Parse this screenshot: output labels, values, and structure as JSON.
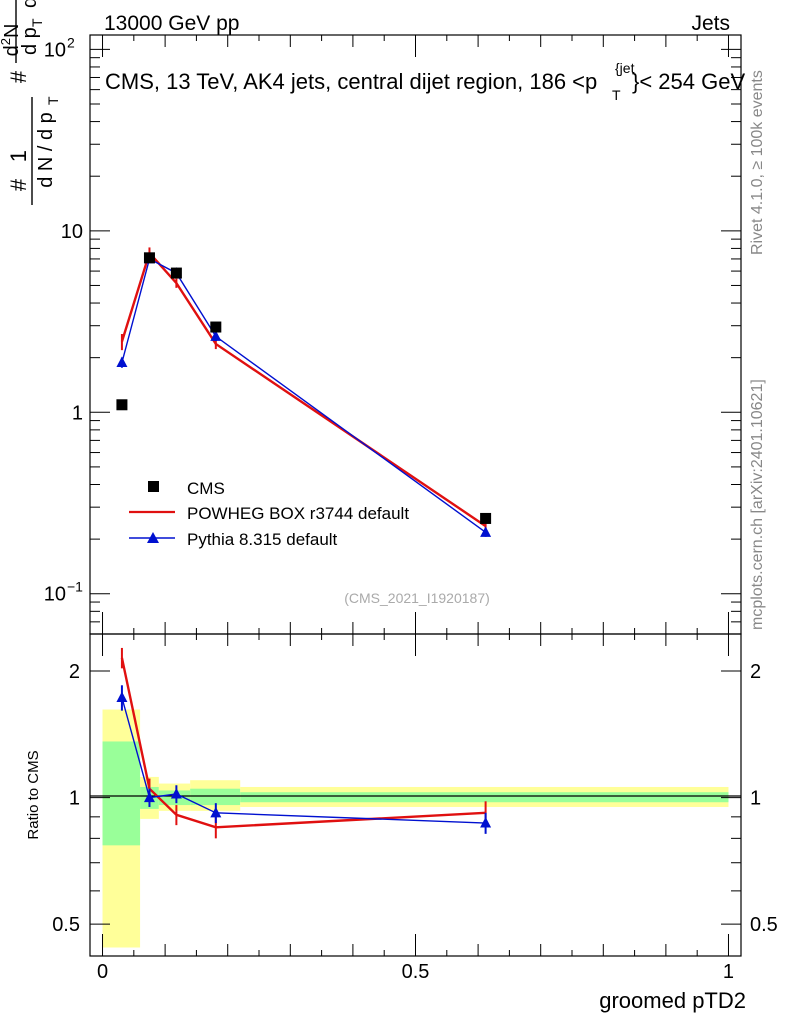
{
  "header": {
    "left": "13000 GeV pp",
    "right": "Jets"
  },
  "side_labels": {
    "rivet": "Rivet 4.1.0, ≥ 100k events",
    "mcplots": "mcplots.cern.ch [arXiv:2401.10621]"
  },
  "chart_data": [
    {
      "type": "line",
      "title": "CMS, 13 TeV, AK4 jets, central dijet region, 186 <p",
      "title_sup": "{jet",
      "title_sub": "T",
      "title_end": "}< 254 GeV",
      "ylabel": "dN/dpTdλ normalized (1 / (dN/dpT) · d²N/(dpT dλ))",
      "xlabel": "",
      "yscale": "log",
      "ylim": [
        0.06,
        120
      ],
      "xlim": [
        -0.02,
        1.02
      ],
      "yticks": [
        {
          "value": 0.1,
          "base": "10",
          "exp": "−1"
        },
        {
          "value": 1,
          "base": "1",
          "exp": ""
        },
        {
          "value": 10,
          "base": "10",
          "exp": ""
        },
        {
          "value": 100,
          "base": "10",
          "exp": "2"
        }
      ],
      "watermark": "(CMS_2021_I1920187)",
      "legend_position": "lower-left",
      "series": [
        {
          "name": "CMS",
          "color": "#000000",
          "marker": "square",
          "x": [
            0.031,
            0.075,
            0.118,
            0.181,
            0.612
          ],
          "y": [
            1.1,
            7.1,
            5.85,
            2.95,
            0.26
          ]
        },
        {
          "name": "POWHEG BOX r3744 default",
          "color": "#e01010",
          "marker": "none",
          "x": [
            0.031,
            0.075,
            0.118,
            0.181,
            0.612
          ],
          "y": [
            2.45,
            7.55,
            5.15,
            2.38,
            0.236
          ],
          "err": [
            0.25,
            0.55,
            0.3,
            0.15,
            0.015
          ]
        },
        {
          "name": "Pythia 8.315 default",
          "color": "#0010d0",
          "marker": "triangle",
          "x": [
            0.031,
            0.075,
            0.118,
            0.181,
            0.612
          ],
          "y": [
            1.88,
            7.0,
            5.85,
            2.62,
            0.218
          ],
          "err": [
            0.12,
            0.3,
            0.3,
            0.15,
            0.012
          ]
        }
      ]
    },
    {
      "type": "line",
      "title": "",
      "ylabel": "Ratio to CMS",
      "xlabel": "groomed pTD2",
      "yscale": "log",
      "ylim": [
        0.42,
        2.45
      ],
      "xlim": [
        -0.02,
        1.02
      ],
      "yticks_labeled": [
        0.5,
        1,
        2
      ],
      "xticks": [
        {
          "value": 0,
          "label": "0"
        },
        {
          "value": 0.5,
          "label": "0.5"
        },
        {
          "value": 1,
          "label": "1"
        }
      ],
      "bands": [
        {
          "x0": 0.0,
          "x1": 0.06,
          "yellow": [
            0.44,
            1.62
          ],
          "green": [
            0.77,
            1.36
          ]
        },
        {
          "x0": 0.06,
          "x1": 0.09,
          "yellow": [
            0.89,
            1.12
          ],
          "green": [
            0.94,
            1.06
          ]
        },
        {
          "x0": 0.09,
          "x1": 0.14,
          "yellow": [
            0.93,
            1.08
          ],
          "green": [
            0.96,
            1.04
          ]
        },
        {
          "x0": 0.14,
          "x1": 0.22,
          "yellow": [
            0.93,
            1.1
          ],
          "green": [
            0.96,
            1.05
          ]
        },
        {
          "x0": 0.22,
          "x1": 1.0,
          "yellow": [
            0.95,
            1.06
          ],
          "green": [
            0.975,
            1.03
          ]
        }
      ],
      "series": [
        {
          "name": "POWHEG BOX r3744 default",
          "color": "#e01010",
          "x": [
            0.031,
            0.075,
            0.118,
            0.181,
            0.612
          ],
          "y": [
            2.15,
            1.05,
            0.91,
            0.85,
            0.92
          ],
          "err": [
            0.12,
            0.06,
            0.05,
            0.05,
            0.06
          ]
        },
        {
          "name": "Pythia 8.315 default",
          "color": "#0010d0",
          "x": [
            0.031,
            0.075,
            0.118,
            0.181,
            0.612
          ],
          "y": [
            1.73,
            1.0,
            1.02,
            0.92,
            0.87
          ],
          "err": [
            0.12,
            0.05,
            0.05,
            0.05,
            0.05
          ]
        }
      ]
    }
  ]
}
